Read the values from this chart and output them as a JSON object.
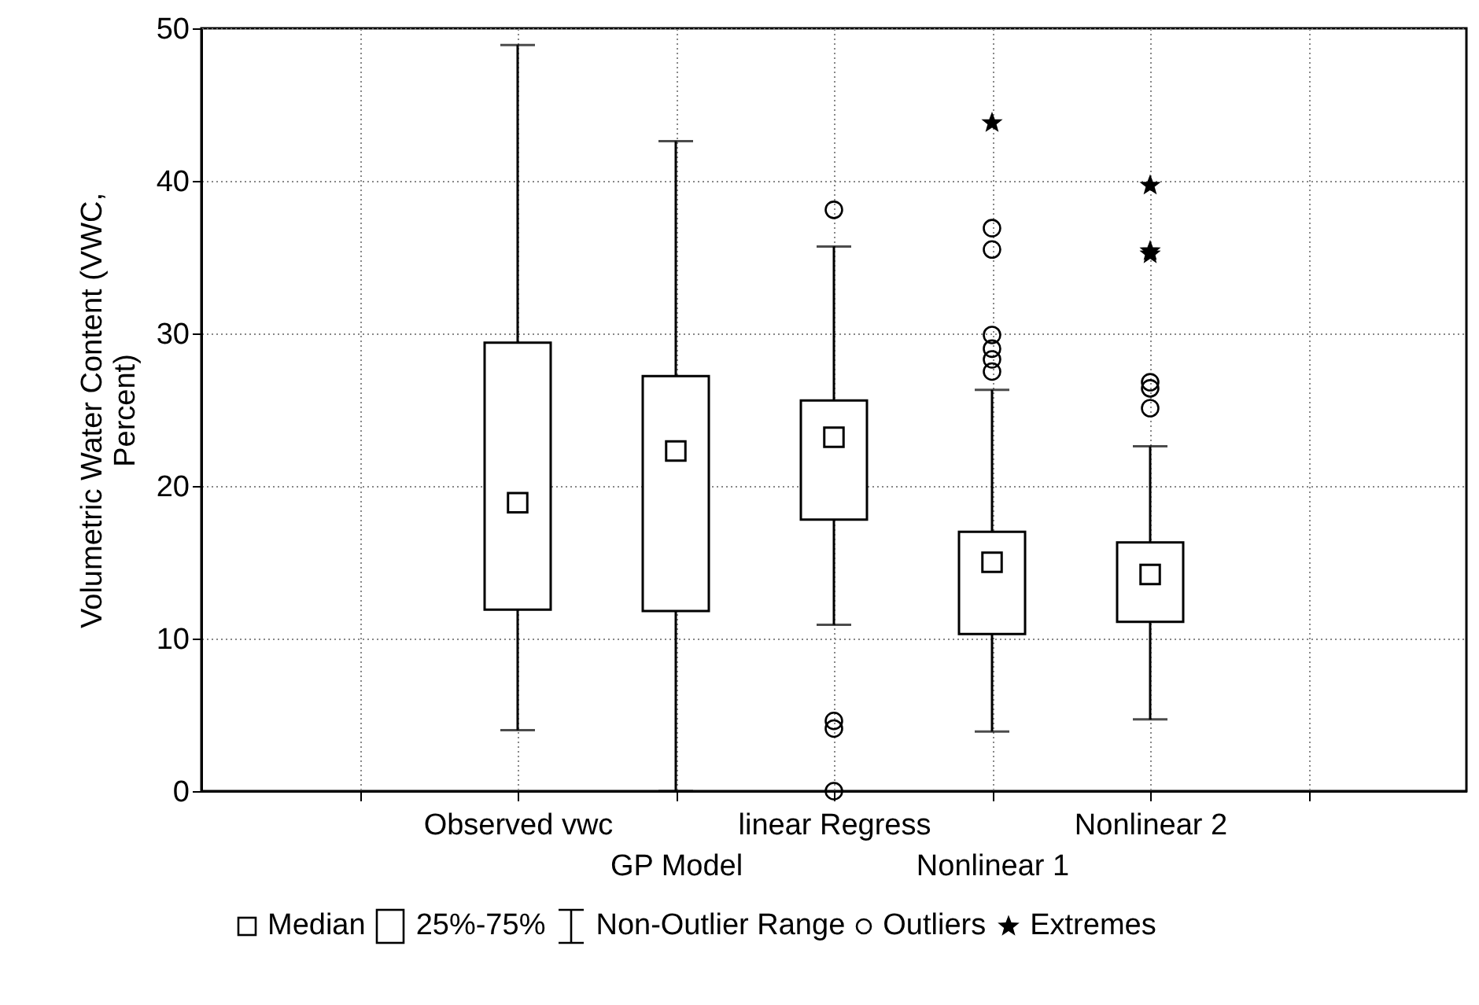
{
  "chart_data": {
    "type": "box",
    "ylabel": "Volumetric Water Content (VWC, Percent)",
    "categories": [
      null,
      "Observed vwc",
      "GP Model",
      "linear Regress",
      "Nonlinear 1",
      "Nonlinear 2",
      null
    ],
    "boxes": [
      null,
      {
        "low": 4,
        "q1": 11.9,
        "median": 18.9,
        "q3": 29.4,
        "high": 48.9
      },
      {
        "low": 0,
        "q1": 11.8,
        "median": 22.3,
        "q3": 27.2,
        "high": 42.6
      },
      {
        "low": 10.9,
        "q1": 17.8,
        "median": 23.2,
        "q3": 25.6,
        "high": 35.7,
        "outliers": [
          38.1,
          4.6,
          4.1,
          0
        ]
      },
      {
        "low": 3.9,
        "q1": 10.3,
        "median": 15,
        "q3": 17,
        "high": 26.3,
        "outliers": [
          36.9,
          35.5,
          29.9,
          29,
          28.3,
          27.5
        ]
      },
      {
        "low": 4.7,
        "q1": 11.1,
        "median": 14.2,
        "q3": 16.3,
        "high": 22.6,
        "outliers": [
          26.8,
          26.4,
          25.1
        ]
      },
      null
    ],
    "series": [
      {
        "name": "Extremes",
        "type": "scatter",
        "marker": "star",
        "color": "#000000",
        "x": [
          "Nonlinear 1",
          "Nonlinear 2",
          "Nonlinear 2",
          "Nonlinear 2"
        ],
        "values": [
          43.8,
          39.7,
          35.4,
          35.2
        ]
      }
    ],
    "annotations": [
      "Median",
      "25%-75%",
      "Non-Outlier Range",
      "Outliers"
    ],
    "ylim": [
      0,
      50
    ],
    "yticks": [
      0,
      10,
      20,
      30,
      40,
      50
    ],
    "grid": true,
    "legend": "bottom"
  }
}
